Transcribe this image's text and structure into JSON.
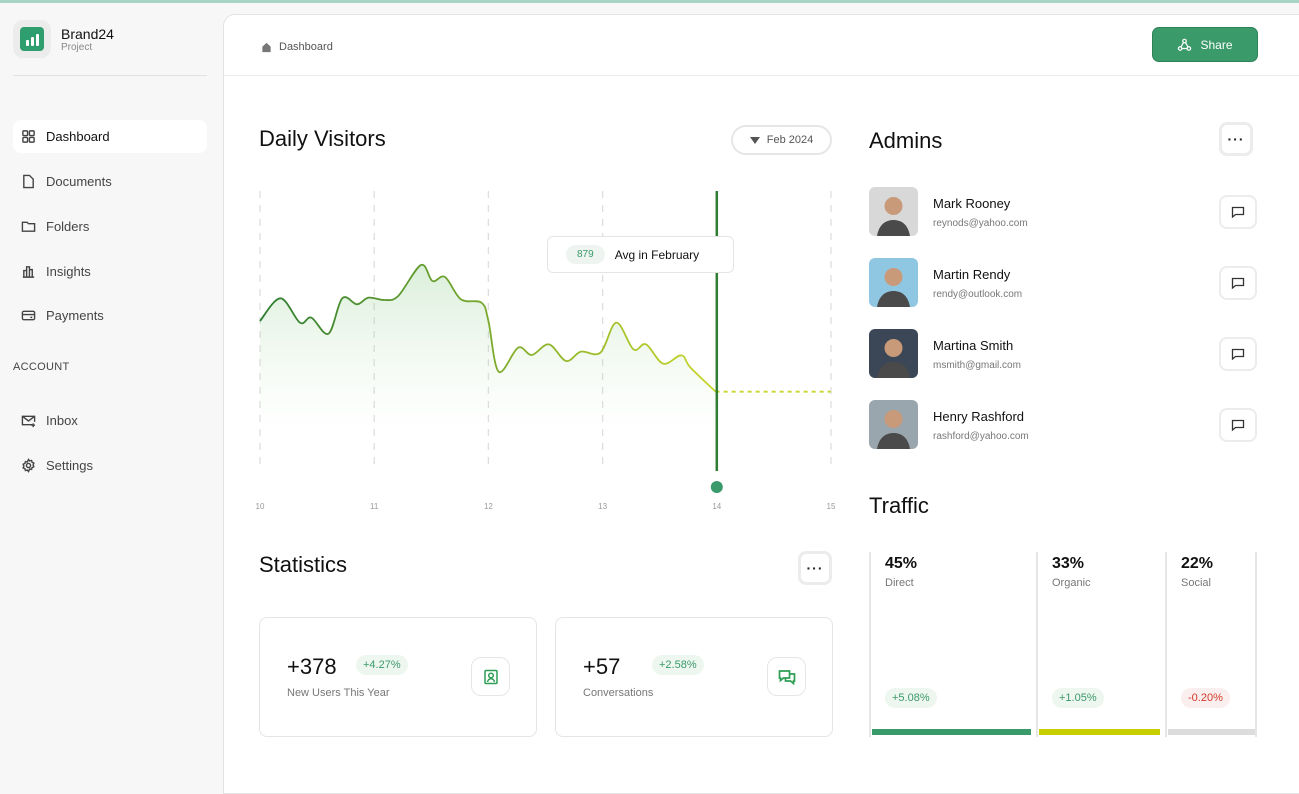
{
  "brand": {
    "name": "Brand24",
    "subtitle": "Project"
  },
  "sidebar": {
    "items": [
      {
        "label": "Dashboard",
        "icon": "grid-icon",
        "active": true
      },
      {
        "label": "Documents",
        "icon": "document-icon"
      },
      {
        "label": "Folders",
        "icon": "folder-icon"
      },
      {
        "label": "Insights",
        "icon": "bar-chart-icon"
      },
      {
        "label": "Payments",
        "icon": "card-icon"
      }
    ],
    "section_label": "ACCOUNT",
    "account_items": [
      {
        "label": "Inbox",
        "icon": "mail-icon"
      },
      {
        "label": "Settings",
        "icon": "gear-icon"
      }
    ]
  },
  "header": {
    "breadcrumb": "Dashboard",
    "share_label": "Share"
  },
  "daily_visitors": {
    "title": "Daily Visitors",
    "period": "Feb 2024",
    "tooltip": {
      "value": "879",
      "label": "Avg in February"
    }
  },
  "chart_data": {
    "type": "line",
    "x_ticks": [
      "10",
      "11",
      "12",
      "13",
      "14",
      "15"
    ],
    "xlim": [
      10,
      15
    ],
    "ylim": [
      100,
      1000
    ],
    "grid": "vertical dashed",
    "highlight_x": 14,
    "colors": {
      "start": "#2e7d32",
      "end": "#c8d62b",
      "marker": "#3a9a6a"
    },
    "series": [
      {
        "points": [
          [
            10.0,
            580
          ],
          [
            10.18,
            648
          ],
          [
            10.35,
            575
          ],
          [
            10.45,
            590
          ],
          [
            10.6,
            542
          ],
          [
            10.72,
            648
          ],
          [
            10.85,
            630
          ],
          [
            10.95,
            650
          ],
          [
            11.09,
            643
          ],
          [
            11.21,
            655
          ],
          [
            11.41,
            748
          ],
          [
            11.51,
            700
          ],
          [
            11.62,
            712
          ],
          [
            11.76,
            645
          ],
          [
            11.94,
            635
          ],
          [
            12.0,
            580
          ],
          [
            12.09,
            428
          ],
          [
            12.26,
            500
          ],
          [
            12.38,
            478
          ],
          [
            12.53,
            510
          ],
          [
            12.68,
            460
          ],
          [
            12.81,
            488
          ],
          [
            12.98,
            485
          ],
          [
            13.12,
            575
          ],
          [
            13.27,
            495
          ],
          [
            13.38,
            510
          ],
          [
            13.53,
            452
          ],
          [
            13.69,
            477
          ],
          [
            13.77,
            440
          ],
          [
            13.99,
            368
          ]
        ],
        "projection": [
          [
            13.99,
            368
          ],
          [
            15,
            368
          ]
        ]
      }
    ]
  },
  "statistics": {
    "title": "Statistics",
    "cards": [
      {
        "value": "+378",
        "change": "+4.27%",
        "label": "New Users This Year",
        "icon": "user-card-icon"
      },
      {
        "value": "+57",
        "change": "+2.58%",
        "label": "Conversations",
        "icon": "chat-bubbles-icon"
      }
    ]
  },
  "admins": {
    "title": "Admins",
    "list": [
      {
        "name": "Mark Rooney",
        "email": "reynods@yahoo.com",
        "bg": "#d8d8d8"
      },
      {
        "name": "Martin Rendy",
        "email": "rendy@outlook.com",
        "bg": "#8fc7e3"
      },
      {
        "name": "Martina Smith",
        "email": "msmith@gmail.com",
        "bg": "#3b4656"
      },
      {
        "name": "Henry Rashford",
        "email": "rashford@yahoo.com",
        "bg": "#9aa6ad"
      }
    ]
  },
  "traffic": {
    "title": "Traffic",
    "sources": [
      {
        "percent": "45%",
        "label": "Direct",
        "change": "+5.08%",
        "trend": "up",
        "color": "#3a9a6a",
        "share": 45
      },
      {
        "percent": "33%",
        "label": "Organic",
        "change": "+1.05%",
        "trend": "up",
        "color": "#c8cf00",
        "share": 33
      },
      {
        "percent": "22%",
        "label": "Social",
        "change": "-0.20%",
        "trend": "down",
        "color": "#dcdcdc",
        "share": 22
      }
    ]
  }
}
